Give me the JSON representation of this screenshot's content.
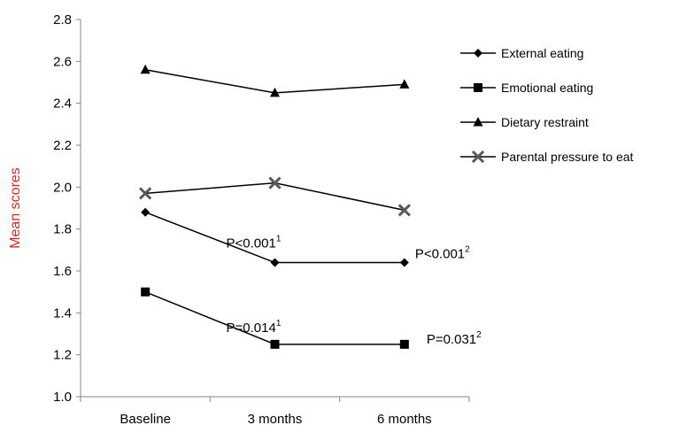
{
  "chart_data": {
    "type": "line",
    "categories": [
      "Baseline",
      "3 months",
      "6 months"
    ],
    "ylabel": "Mean scores",
    "ylim": [
      1.0,
      2.8
    ],
    "yticks": [
      "1.0",
      "1.2",
      "1.4",
      "1.6",
      "1.8",
      "2.0",
      "2.2",
      "2.4",
      "2.6",
      "2.8"
    ],
    "grid": false,
    "legend_position": "right",
    "series": [
      {
        "name": "External eating",
        "marker": "diamond",
        "values": [
          1.88,
          1.64,
          1.64
        ]
      },
      {
        "name": "Emotional eating",
        "marker": "square",
        "values": [
          1.5,
          1.25,
          1.25
        ]
      },
      {
        "name": "Dietary restraint",
        "marker": "triangle",
        "values": [
          2.56,
          2.45,
          2.49
        ]
      },
      {
        "name": "Parental pressure to eat",
        "marker": "x",
        "values": [
          1.97,
          2.02,
          1.89
        ]
      }
    ],
    "annotations": [
      {
        "text": "P<0.001",
        "sup": "1",
        "series": 0,
        "category": 1
      },
      {
        "text": "P<0.001",
        "sup": "2",
        "series": 0,
        "category": 2
      },
      {
        "text": "P=0.014",
        "sup": "1",
        "series": 1,
        "category": 1
      },
      {
        "text": "P=0.031",
        "sup": "2",
        "series": 1,
        "category": 2
      }
    ],
    "colors": {
      "line": "#000000",
      "marker_x": "#595959",
      "ylabel": "#e8241b",
      "axis": "#868686"
    }
  }
}
